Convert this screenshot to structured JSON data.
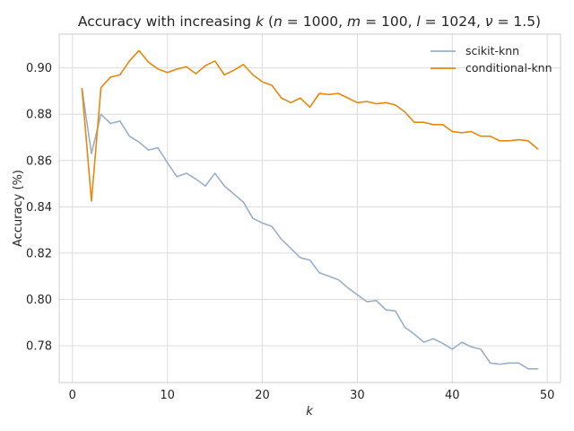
{
  "chart_data": {
    "type": "line",
    "title": "Accuracy with increasing k (n = 1000, m = 100, l = 1024, ν = 1.5)",
    "title_parts": {
      "prefix": "Accuracy with increasing ",
      "var": "k",
      "open": " (",
      "n_var": "n",
      "n_val": " = 1000, ",
      "m_var": "m",
      "m_val": " = 100, ",
      "l_var": "l",
      "l_val": " = 1024, ",
      "nu_var": "ν",
      "nu_val": " = 1.5)"
    },
    "xlabel": "k",
    "ylabel": "Accuracy (%)",
    "xlim": [
      -1.4,
      51.4
    ],
    "ylim": [
      0.7641,
      0.9146
    ],
    "xticks": [
      0,
      10,
      20,
      30,
      40,
      50
    ],
    "xtick_labels": [
      "0",
      "10",
      "20",
      "30",
      "40",
      "50"
    ],
    "yticks": [
      0.78,
      0.8,
      0.82,
      0.84,
      0.86,
      0.88,
      0.9
    ],
    "ytick_labels": [
      "0.78",
      "0.80",
      "0.82",
      "0.84",
      "0.86",
      "0.88",
      "0.90"
    ],
    "grid": true,
    "legend_position": "top-right",
    "x": [
      1,
      2,
      3,
      4,
      5,
      6,
      7,
      8,
      9,
      10,
      11,
      12,
      13,
      14,
      15,
      16,
      17,
      18,
      19,
      20,
      21,
      22,
      23,
      24,
      25,
      26,
      27,
      28,
      29,
      30,
      31,
      32,
      33,
      34,
      35,
      36,
      37,
      38,
      39,
      40,
      41,
      42,
      43,
      44,
      45,
      46,
      47,
      48,
      49
    ],
    "series": [
      {
        "name": "scikit-knn",
        "color": "#9aafc8",
        "values": [
          0.891,
          0.863,
          0.88,
          0.876,
          0.877,
          0.8705,
          0.868,
          0.8645,
          0.8655,
          0.859,
          0.853,
          0.8545,
          0.852,
          0.849,
          0.8545,
          0.849,
          0.8455,
          0.842,
          0.835,
          0.833,
          0.8315,
          0.826,
          0.822,
          0.818,
          0.817,
          0.8115,
          0.81,
          0.8085,
          0.805,
          0.802,
          0.799,
          0.7995,
          0.7955,
          0.795,
          0.788,
          0.785,
          0.7815,
          0.783,
          0.781,
          0.7785,
          0.7815,
          0.7795,
          0.7785,
          0.7725,
          0.772,
          0.7725,
          0.7725,
          0.77,
          0.77
        ]
      },
      {
        "name": "conditional-knn",
        "color": "#e8870e",
        "values": [
          0.891,
          0.8425,
          0.8915,
          0.896,
          0.897,
          0.903,
          0.9075,
          0.9025,
          0.8995,
          0.898,
          0.8995,
          0.9005,
          0.8975,
          0.901,
          0.903,
          0.897,
          0.899,
          0.9015,
          0.897,
          0.894,
          0.8925,
          0.887,
          0.885,
          0.887,
          0.883,
          0.889,
          0.8885,
          0.889,
          0.887,
          0.885,
          0.8855,
          0.8845,
          0.885,
          0.884,
          0.881,
          0.8765,
          0.8765,
          0.8755,
          0.8755,
          0.8725,
          0.872,
          0.8725,
          0.8705,
          0.8705,
          0.8685,
          0.8685,
          0.869,
          0.8685,
          0.865
        ]
      }
    ]
  }
}
